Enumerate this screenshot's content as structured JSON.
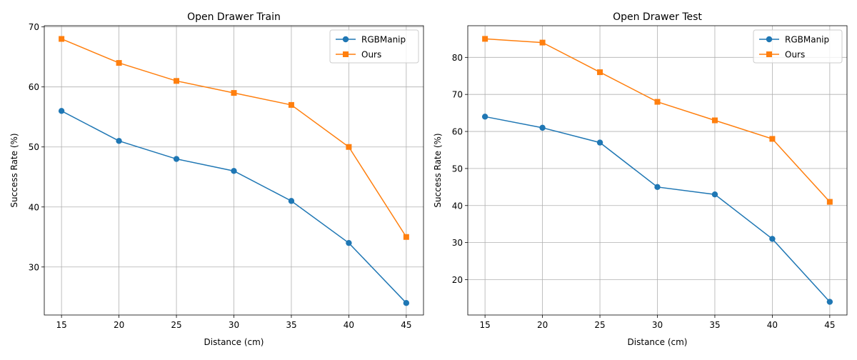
{
  "chart_data": [
    {
      "type": "line",
      "title": "Open Drawer Train",
      "xlabel": "Distance (cm)",
      "ylabel": "Success Rate (%)",
      "x": [
        15,
        20,
        25,
        30,
        35,
        40,
        45
      ],
      "xlim": [
        13.5,
        46.5
      ],
      "ylim": [
        22,
        70.2
      ],
      "xticks": [
        15,
        20,
        25,
        30,
        35,
        40,
        45
      ],
      "yticks": [
        30,
        40,
        50,
        60,
        70
      ],
      "grid": true,
      "legend_position": "top-right",
      "series": [
        {
          "name": "RGBManip",
          "marker": "circle",
          "color": "#1f77b4",
          "values": [
            56,
            51,
            48,
            46,
            41,
            34,
            24
          ]
        },
        {
          "name": "Ours",
          "marker": "square",
          "color": "#ff7f0e",
          "values": [
            68,
            64,
            61,
            59,
            57,
            50,
            35
          ]
        }
      ]
    },
    {
      "type": "line",
      "title": "Open Drawer Test",
      "xlabel": "Distance (cm)",
      "ylabel": "Success Rate (%)",
      "x": [
        15,
        20,
        25,
        30,
        35,
        40,
        45
      ],
      "xlim": [
        13.5,
        46.5
      ],
      "ylim": [
        10.45,
        88.55
      ],
      "xticks": [
        15,
        20,
        25,
        30,
        35,
        40,
        45
      ],
      "yticks": [
        20,
        30,
        40,
        50,
        60,
        70,
        80
      ],
      "grid": true,
      "legend_position": "top-right",
      "series": [
        {
          "name": "RGBManip",
          "marker": "circle",
          "color": "#1f77b4",
          "values": [
            64,
            61,
            57,
            45,
            43,
            31,
            14
          ]
        },
        {
          "name": "Ours",
          "marker": "square",
          "color": "#ff7f0e",
          "values": [
            85,
            84,
            76,
            68,
            63,
            58,
            41
          ]
        }
      ]
    }
  ]
}
